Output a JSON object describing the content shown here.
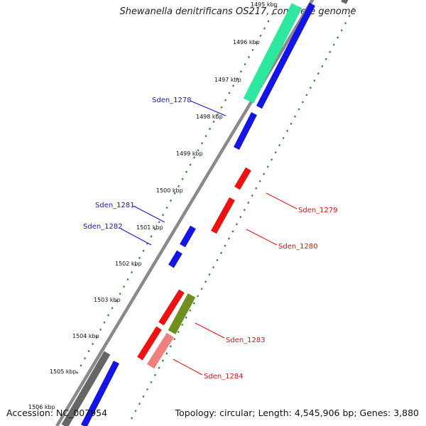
{
  "title": "Shewanella denitrificans OS217, complete genome",
  "footer": {
    "accession": "Accession: NC_007954",
    "topology": "Topology: circular; Length: 4,545,906 bp; Genes: 3,880"
  },
  "colors": {
    "backbone": "#8a8a8a",
    "tick_dots": "#2e8b2e",
    "forward_gene": "#1414e6",
    "reverse_gene": "#ee1111",
    "rna": "#2ee8a0",
    "olive": "#6f8f1f",
    "pink": "#f08080",
    "gray_gene": "#666666"
  },
  "kbp_ticks": [
    {
      "label": "1495 kbp"
    },
    {
      "label": "1496 kbp"
    },
    {
      "label": "1497 kbp"
    },
    {
      "label": "1498 kbp"
    },
    {
      "label": "1499 kbp"
    },
    {
      "label": "1500 kbp"
    },
    {
      "label": "1501 kbp"
    },
    {
      "label": "1502 kbp"
    },
    {
      "label": "1503 kbp"
    },
    {
      "label": "1504 kbp"
    },
    {
      "label": "1505 kbp"
    },
    {
      "label": "1506 kbp"
    }
  ],
  "gene_labels": [
    {
      "text": "Sden_1278",
      "strand": "forward"
    },
    {
      "text": "Sden_1279",
      "strand": "reverse"
    },
    {
      "text": "Sden_1280",
      "strand": "reverse"
    },
    {
      "text": "Sden_1281",
      "strand": "forward"
    },
    {
      "text": "Sden_1282",
      "strand": "forward"
    },
    {
      "text": "Sden_1283",
      "strand": "reverse"
    },
    {
      "text": "Sden_1284",
      "strand": "reverse"
    }
  ]
}
